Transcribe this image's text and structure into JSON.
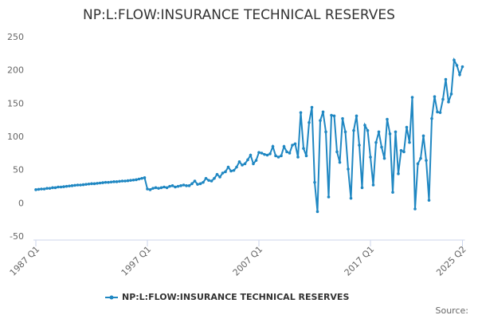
{
  "chart_data": {
    "type": "line",
    "title": "NP:L:FLOW:INSURANCE TECHNICAL RESERVES",
    "source": "Source:",
    "categories": [
      "1987 Q1",
      null,
      null,
      null,
      null,
      null,
      null,
      null,
      null,
      null,
      null,
      null,
      null,
      null,
      null,
      null,
      null,
      null,
      null,
      null,
      null,
      null,
      null,
      null,
      null,
      null,
      null,
      null,
      null,
      null,
      null,
      null,
      null,
      null,
      null,
      null,
      null,
      null,
      null,
      null,
      "1997 Q1",
      null,
      null,
      null,
      null,
      null,
      null,
      null,
      null,
      null,
      null,
      null,
      null,
      null,
      null,
      null,
      null,
      null,
      null,
      null,
      null,
      null,
      null,
      null,
      null,
      null,
      null,
      null,
      null,
      null,
      null,
      null,
      null,
      null,
      null,
      null,
      null,
      null,
      null,
      null,
      "2007 Q1",
      null,
      null,
      null,
      null,
      null,
      null,
      null,
      null,
      null,
      null,
      null,
      null,
      null,
      null,
      null,
      null,
      null,
      null,
      null,
      null,
      null,
      null,
      null,
      null,
      null,
      null,
      null,
      null,
      null,
      null,
      null,
      null,
      null,
      null,
      null,
      null,
      null,
      null,
      null,
      "2017 Q1",
      null,
      null,
      null,
      null,
      null,
      null,
      null,
      null,
      null,
      null,
      null,
      null,
      null,
      null,
      null,
      null,
      null,
      null,
      null,
      null,
      null,
      null,
      null,
      null,
      null,
      null,
      null,
      null,
      null,
      null,
      null,
      null,
      "2025 Q2"
    ],
    "series": [
      {
        "name": "NP:L:FLOW:INSURANCE TECHNICAL RESERVES",
        "color": "#1f87c2",
        "values": [
          21,
          21.5,
          22,
          22,
          23,
          23,
          24,
          24,
          25,
          25,
          25.5,
          26,
          26.5,
          27,
          27.5,
          28,
          28,
          28.5,
          29,
          29.5,
          30,
          30,
          30.5,
          31,
          31.5,
          32,
          32,
          32.5,
          33,
          33,
          33.5,
          34,
          34,
          34.5,
          35,
          35.5,
          36,
          37,
          38,
          39,
          22,
          21,
          23,
          24,
          23,
          24,
          25,
          24,
          26,
          27,
          25,
          26,
          27,
          28,
          27,
          27,
          30,
          34,
          29,
          30,
          32,
          38,
          35,
          34,
          38,
          44,
          40,
          46,
          48,
          55,
          49,
          50,
          55,
          63,
          58,
          60,
          66,
          73,
          60,
          65,
          77,
          76,
          74,
          73,
          75,
          86,
          72,
          70,
          72,
          86,
          78,
          76,
          88,
          90,
          70,
          137,
          83,
          72,
          122,
          145,
          32,
          -12,
          125,
          138,
          108,
          10,
          133,
          132,
          78,
          62,
          128,
          108,
          52,
          8,
          110,
          132,
          88,
          24,
          118,
          110,
          70,
          28,
          92,
          108,
          85,
          68,
          127,
          105,
          17,
          108,
          45,
          80,
          78,
          115,
          92,
          160,
          -8,
          60,
          68,
          102,
          65,
          5,
          128,
          161,
          138,
          137,
          157,
          187,
          153,
          165,
          216,
          208,
          194,
          206
        ]
      }
    ],
    "ylim": [
      -50,
      250
    ],
    "yticks": [
      -50,
      0,
      50,
      100,
      150,
      200,
      250
    ],
    "grid": false,
    "legend": "bottom"
  }
}
